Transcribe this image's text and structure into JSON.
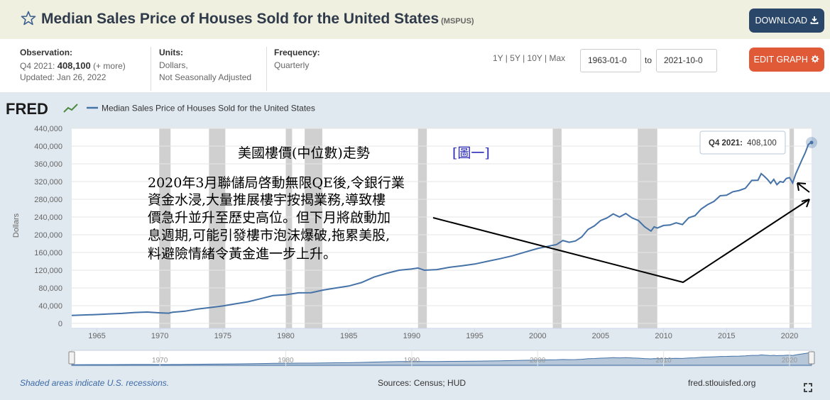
{
  "header": {
    "title": "Median Sales Price of Houses Sold for the United States",
    "series_code": "(MSPUS)",
    "download_label": "DOWNLOAD",
    "download_icon": "download-arrow-icon",
    "star_icon": "star-outline-icon"
  },
  "meta": {
    "observation_label": "Observation:",
    "observation_period": "Q4 2021:",
    "observation_value": "408,100",
    "observation_more": "(+ more)",
    "updated": "Updated: Jan 26, 2022",
    "units_label": "Units:",
    "units_line1": "Dollars,",
    "units_line2": "Not Seasonally Adjusted",
    "frequency_label": "Frequency:",
    "frequency_value": "Quarterly"
  },
  "controls": {
    "range_1y": "1Y",
    "range_5y": "5Y",
    "range_10y": "10Y",
    "range_max": "Max",
    "start_date": "1963-01-0",
    "to_label": "to",
    "end_date": "2021-10-0",
    "edit_label": "EDIT GRAPH",
    "edit_icon": "gear-icon"
  },
  "footer": {
    "recession_note": "Shaded areas indicate U.S. recessions.",
    "sources": "Sources: Census; HUD",
    "site": "fred.stlouisfed.org"
  },
  "annotation": {
    "heading": "美國樓價(中位數)走勢",
    "figure_label": "[圖一]",
    "lines": [
      "2020年3月聯儲局啓動無限QE後,令銀行業",
      "資金水浸,大量推展樓宇按揭業務,導致樓",
      "價急升並升至歷史高位。但下月將啟動加",
      "息週期,可能引發樓市泡沫爆破,拖累美股,",
      "料避險情緒令黃金進一步上升。"
    ]
  },
  "tooltip": {
    "label": "Q4 2021:",
    "value": "408,100"
  },
  "colors": {
    "series": "#4572a7",
    "recession": "#d0d0d0",
    "panel": "#e1e9f0",
    "download_button": "#2a4669",
    "edit_button": "#e05a38"
  },
  "chart_data": {
    "type": "line",
    "title": "",
    "logo_text": "FRED",
    "ylabel": "Dollars",
    "ylim": [
      0,
      440000
    ],
    "xlim": [
      1963.0,
      2021.75
    ],
    "ytick_labels": [
      "0",
      "40,000",
      "80,000",
      "120,000",
      "160,000",
      "200,000",
      "240,000",
      "280,000",
      "320,000",
      "360,000",
      "400,000",
      "440,000"
    ],
    "ytick_values": [
      0,
      40000,
      80000,
      120000,
      160000,
      200000,
      240000,
      280000,
      320000,
      360000,
      400000,
      440000
    ],
    "xtick_labels": [
      "1965",
      "1970",
      "1975",
      "1980",
      "1985",
      "1990",
      "1995",
      "2000",
      "2005",
      "2010",
      "2015",
      "2020"
    ],
    "xtick_values": [
      1965,
      1970,
      1975,
      1980,
      1985,
      1990,
      1995,
      2000,
      2005,
      2010,
      2015,
      2020
    ],
    "nav_tick_labels": [
      "1970",
      "1980",
      "1990",
      "2000",
      "2010",
      "2020"
    ],
    "nav_tick_values": [
      1970,
      1980,
      1990,
      2000,
      2010,
      2020
    ],
    "recessions": [
      [
        1969.95,
        1970.85
      ],
      [
        1973.9,
        1975.2
      ],
      [
        1980.0,
        1980.5
      ],
      [
        1981.5,
        1982.9
      ],
      [
        1990.5,
        1991.2
      ],
      [
        2001.2,
        2001.9
      ],
      [
        2007.95,
        2009.5
      ],
      [
        2020.0,
        2020.35
      ]
    ],
    "series": [
      {
        "name": "Median Sales Price of Houses Sold for the United States",
        "x": [
          1963.0,
          1965.0,
          1966.0,
          1967.0,
          1968.0,
          1969.0,
          1970.0,
          1970.7,
          1971.0,
          1972.0,
          1973.0,
          1974.0,
          1975.0,
          1976.0,
          1977.0,
          1978.0,
          1979.0,
          1980.0,
          1981.0,
          1982.0,
          1983.0,
          1984.0,
          1985.0,
          1986.0,
          1987.0,
          1988.0,
          1989.0,
          1990.0,
          1990.5,
          1991.0,
          1992.0,
          1993.0,
          1994.0,
          1995.0,
          1996.0,
          1997.0,
          1998.0,
          1999.0,
          2000.0,
          2001.0,
          2001.5,
          2002.0,
          2002.5,
          2003.0,
          2003.5,
          2004.0,
          2004.5,
          2005.0,
          2005.5,
          2006.0,
          2006.5,
          2007.0,
          2007.5,
          2008.0,
          2008.5,
          2009.0,
          2009.25,
          2009.5,
          2010.0,
          2010.5,
          2011.0,
          2011.5,
          2012.0,
          2012.5,
          2013.0,
          2013.5,
          2014.0,
          2014.5,
          2015.0,
          2015.5,
          2016.0,
          2016.5,
          2017.0,
          2017.5,
          2017.75,
          2018.0,
          2018.25,
          2018.5,
          2018.75,
          2019.0,
          2019.25,
          2019.5,
          2019.75,
          2020.0,
          2020.25,
          2020.5,
          2021.0,
          2021.25,
          2021.5,
          2021.75
        ],
        "values": [
          18000,
          20000,
          21500,
          22500,
          24700,
          25600,
          23900,
          23000,
          25200,
          27600,
          32500,
          35900,
          39300,
          44200,
          48800,
          55700,
          62900,
          64600,
          68900,
          69300,
          75300,
          80000,
          84300,
          92000,
          104500,
          113000,
          120000,
          122900,
          125000,
          120000,
          121500,
          126500,
          130000,
          133900,
          140000,
          146000,
          152500,
          161000,
          169000,
          175000,
          178000,
          187000,
          183000,
          186000,
          195000,
          212000,
          220000,
          232000,
          238000,
          247000,
          240000,
          247900,
          238000,
          232100,
          218000,
          208400,
          218000,
          215000,
          221000,
          222000,
          226900,
          223000,
          238400,
          243000,
          258400,
          268000,
          275200,
          288000,
          289200,
          297000,
          299800,
          305000,
          322500,
          323000,
          337900,
          331800,
          325000,
          316000,
          325000,
          313000,
          320000,
          318400,
          327000,
          329000,
          317000,
          337500,
          369800,
          385000,
          404000,
          408100
        ],
        "last_label": "Q4 2021: 408,100"
      }
    ]
  }
}
